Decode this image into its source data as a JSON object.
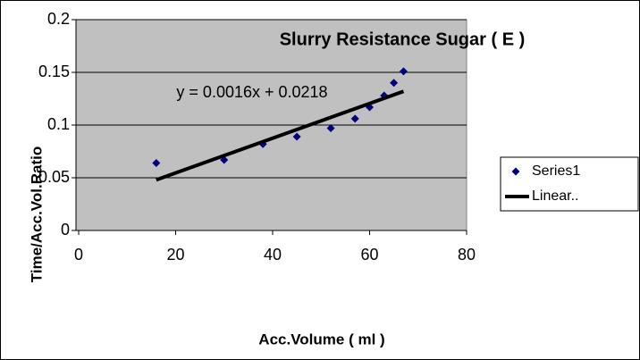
{
  "chart_data": {
    "type": "scatter",
    "title": "Slurry  Resistance Sugar ( E )",
    "x_label": "Acc.Volume ( ml )",
    "y_label": "Time/Acc.Vol.Ratio",
    "annotation": "y = 0.0016x + 0.0218",
    "series": [
      {
        "name": "Series1",
        "color": "#000080",
        "x": [
          16,
          30,
          38,
          45,
          52,
          57,
          60,
          63,
          65,
          67
        ],
        "values": [
          0.064,
          0.067,
          0.082,
          0.089,
          0.097,
          0.106,
          0.117,
          0.128,
          0.14,
          0.151
        ]
      },
      {
        "name": "Linear..",
        "color": "#000000",
        "x": [
          16,
          67
        ],
        "values": [
          0.048,
          0.132
        ]
      }
    ],
    "xlim": [
      0,
      80
    ],
    "xticks": [
      0,
      20,
      40,
      60,
      80
    ],
    "ylim": [
      0,
      0.2
    ],
    "yticks": [
      0,
      0.05,
      0.1,
      0.15,
      0.2
    ],
    "grid": true,
    "legend": "right"
  }
}
